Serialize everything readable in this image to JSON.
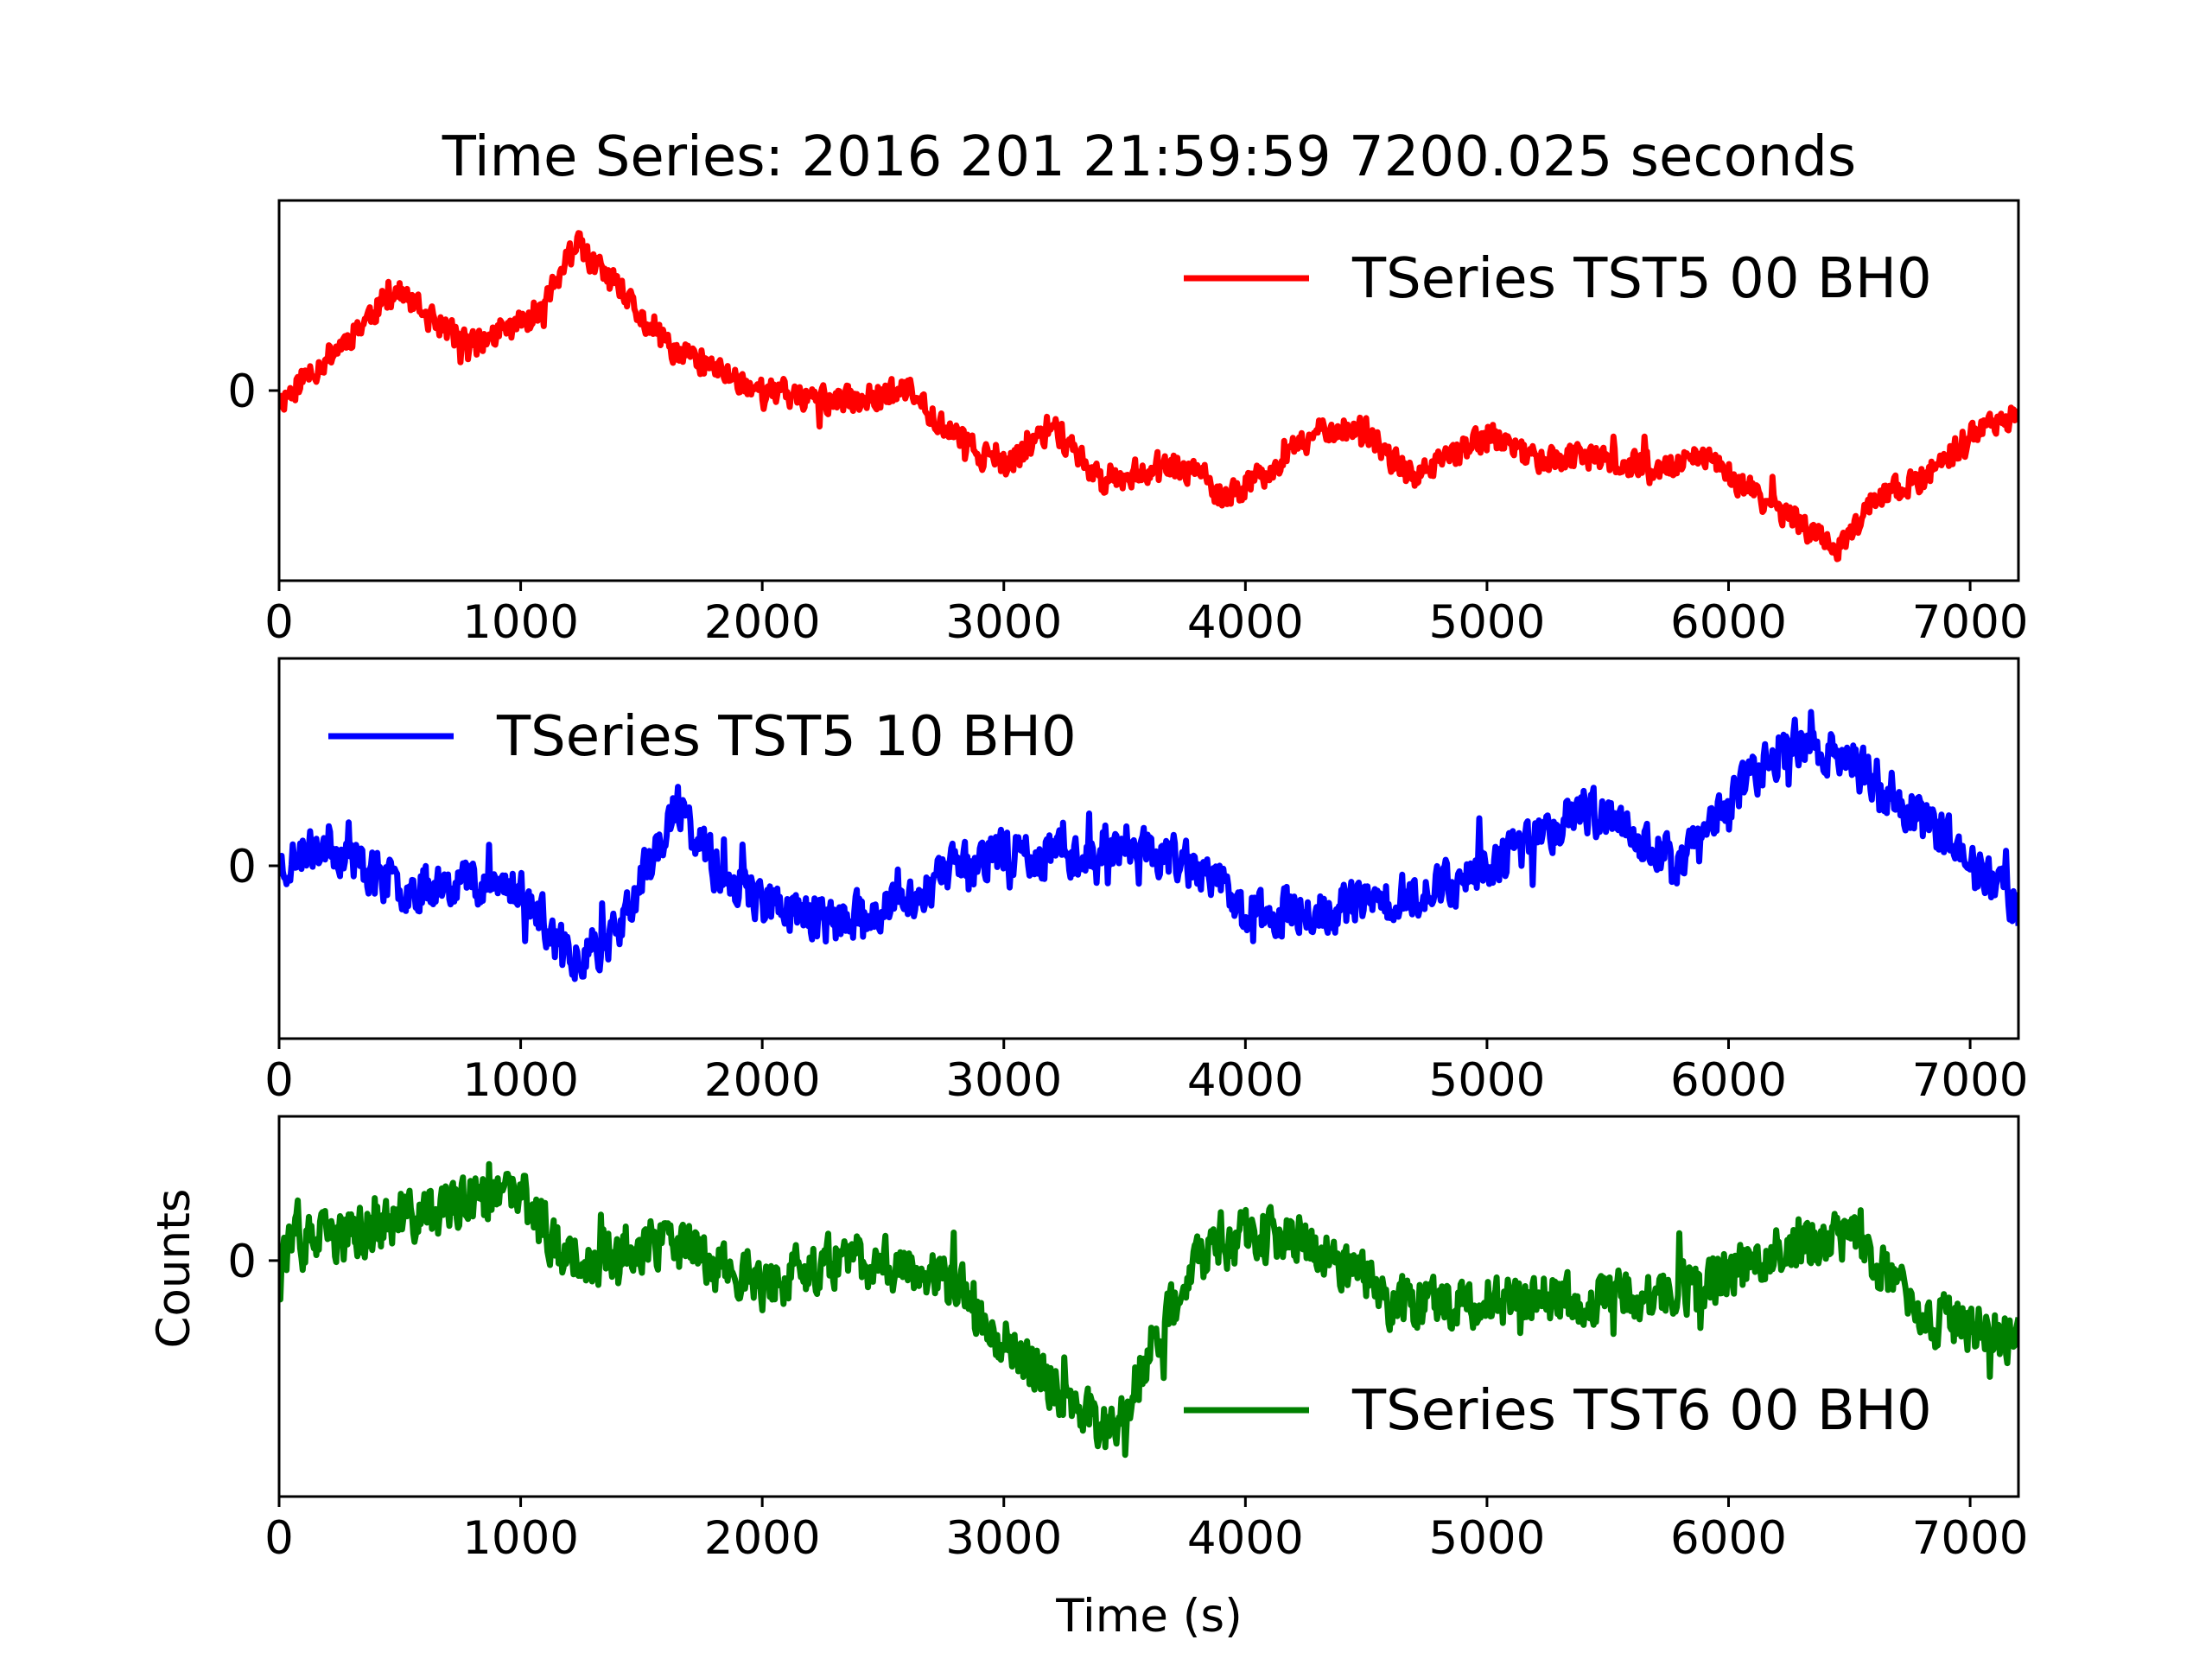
{
  "figure": {
    "title": "Time Series: 2016 201 21:59:59 7200.025 seconds",
    "xlabel": "Time (s)",
    "ylabel": "Counts"
  },
  "chart_data": [
    {
      "type": "line",
      "series": [
        {
          "name": "TSeries TST5 00 BH0",
          "color": "#ff0000"
        }
      ],
      "xlim": [
        0,
        7200
      ],
      "ylim": [
        -0.85,
        0.85
      ],
      "x_ticks": [
        "0",
        "1000",
        "2000",
        "3000",
        "4000",
        "5000",
        "6000",
        "7000"
      ],
      "x_tick_values": [
        0,
        1000,
        2000,
        3000,
        4000,
        5000,
        6000,
        7000
      ],
      "y_ticks": [
        "0"
      ],
      "y_tick_values": [
        0
      ],
      "legend_position": "top-right",
      "noise": 0.055,
      "seed": 11,
      "trend": [
        [
          0,
          -0.05
        ],
        [
          250,
          0.2
        ],
        [
          480,
          0.45
        ],
        [
          650,
          0.3
        ],
        [
          800,
          0.2
        ],
        [
          1000,
          0.3
        ],
        [
          1100,
          0.4
        ],
        [
          1230,
          0.65
        ],
        [
          1400,
          0.45
        ],
        [
          1600,
          0.2
        ],
        [
          1800,
          0.1
        ],
        [
          2000,
          0.0
        ],
        [
          2300,
          -0.05
        ],
        [
          2600,
          0.0
        ],
        [
          2800,
          -0.2
        ],
        [
          3000,
          -0.35
        ],
        [
          3200,
          -0.15
        ],
        [
          3400,
          -0.4
        ],
        [
          3600,
          -0.35
        ],
        [
          3800,
          -0.35
        ],
        [
          3900,
          -0.5
        ],
        [
          4100,
          -0.35
        ],
        [
          4350,
          -0.15
        ],
        [
          4500,
          -0.2
        ],
        [
          4700,
          -0.4
        ],
        [
          5000,
          -0.2
        ],
        [
          5200,
          -0.3
        ],
        [
          5400,
          -0.3
        ],
        [
          5700,
          -0.35
        ],
        [
          5900,
          -0.3
        ],
        [
          6100,
          -0.45
        ],
        [
          6300,
          -0.6
        ],
        [
          6450,
          -0.7
        ],
        [
          6600,
          -0.5
        ],
        [
          6800,
          -0.4
        ],
        [
          7000,
          -0.2
        ],
        [
          7200,
          -0.1
        ]
      ]
    },
    {
      "type": "line",
      "series": [
        {
          "name": "TSeries TST5 10 BH0",
          "color": "#0000ff"
        }
      ],
      "xlim": [
        0,
        7200
      ],
      "ylim": [
        -0.75,
        0.9
      ],
      "x_ticks": [
        "0",
        "1000",
        "2000",
        "3000",
        "4000",
        "5000",
        "6000",
        "7000"
      ],
      "x_tick_values": [
        0,
        1000,
        2000,
        3000,
        4000,
        5000,
        6000,
        7000
      ],
      "y_ticks": [
        "0"
      ],
      "y_tick_values": [
        0
      ],
      "legend_position": "top-left",
      "noise": 0.09,
      "seed": 23,
      "trend": [
        [
          0,
          0.0
        ],
        [
          200,
          0.1
        ],
        [
          500,
          -0.1
        ],
        [
          800,
          -0.05
        ],
        [
          1000,
          -0.1
        ],
        [
          1200,
          -0.4
        ],
        [
          1400,
          -0.3
        ],
        [
          1550,
          0.05
        ],
        [
          1650,
          0.25
        ],
        [
          1800,
          0.0
        ],
        [
          2000,
          -0.15
        ],
        [
          2300,
          -0.25
        ],
        [
          2600,
          -0.15
        ],
        [
          2800,
          0.0
        ],
        [
          3000,
          0.05
        ],
        [
          3300,
          0.05
        ],
        [
          3500,
          0.1
        ],
        [
          3800,
          0.0
        ],
        [
          4000,
          -0.2
        ],
        [
          4300,
          -0.2
        ],
        [
          4600,
          -0.15
        ],
        [
          4900,
          -0.05
        ],
        [
          5100,
          0.05
        ],
        [
          5400,
          0.25
        ],
        [
          5600,
          0.15
        ],
        [
          5800,
          0.0
        ],
        [
          6000,
          0.3
        ],
        [
          6300,
          0.55
        ],
        [
          6500,
          0.45
        ],
        [
          6800,
          0.2
        ],
        [
          7000,
          0.05
        ],
        [
          7200,
          -0.2
        ]
      ]
    },
    {
      "type": "line",
      "series": [
        {
          "name": "TSeries TST6 00 BH0",
          "color": "#008000"
        }
      ],
      "xlim": [
        0,
        7200
      ],
      "ylim": [
        -0.9,
        0.55
      ],
      "x_ticks": [
        "0",
        "1000",
        "2000",
        "3000",
        "4000",
        "5000",
        "6000",
        "7000"
      ],
      "x_tick_values": [
        0,
        1000,
        2000,
        3000,
        4000,
        5000,
        6000,
        7000
      ],
      "y_ticks": [
        "0"
      ],
      "y_tick_values": [
        0
      ],
      "legend_position": "bottom-right",
      "noise": 0.09,
      "seed": 37,
      "trend": [
        [
          0,
          0.05
        ],
        [
          300,
          0.1
        ],
        [
          700,
          0.2
        ],
        [
          1000,
          0.25
        ],
        [
          1200,
          0.0
        ],
        [
          1500,
          0.05
        ],
        [
          1700,
          0.05
        ],
        [
          2000,
          -0.1
        ],
        [
          2300,
          0.0
        ],
        [
          2600,
          0.0
        ],
        [
          2800,
          -0.1
        ],
        [
          3000,
          -0.3
        ],
        [
          3300,
          -0.55
        ],
        [
          3450,
          -0.65
        ],
        [
          3600,
          -0.35
        ],
        [
          3800,
          0.0
        ],
        [
          4000,
          0.1
        ],
        [
          4300,
          0.05
        ],
        [
          4600,
          -0.15
        ],
        [
          5000,
          -0.15
        ],
        [
          5500,
          -0.15
        ],
        [
          5900,
          -0.1
        ],
        [
          6200,
          0.05
        ],
        [
          6500,
          0.1
        ],
        [
          6800,
          -0.2
        ],
        [
          7000,
          -0.25
        ],
        [
          7200,
          -0.3
        ]
      ]
    }
  ]
}
